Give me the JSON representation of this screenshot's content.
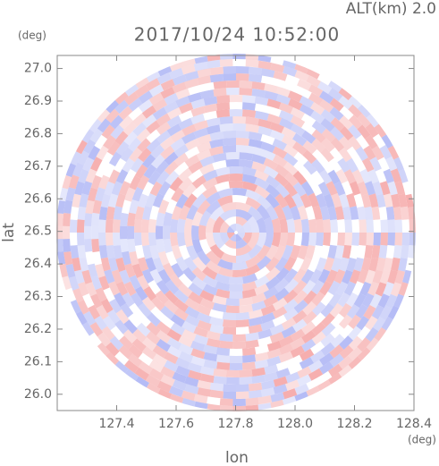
{
  "chart_data": {
    "type": "image",
    "title": "2017/10/24 10:52:00",
    "subtitle": "ALT(km) 2.0",
    "x_label": "lon",
    "y_label": "lat",
    "x_unit": "(deg)",
    "y_unit": "(deg)",
    "xlim": [
      127.2,
      128.4
    ],
    "xticks": [
      127.4,
      127.6,
      127.8,
      {
        "value": 128.0,
        "label": "128.0"
      },
      128.2,
      128.4
    ],
    "ylim": [
      25.95,
      27.04
    ],
    "yticks": [
      {
        "value": 26.0,
        "label": "26.0"
      },
      26.1,
      26.2,
      26.3,
      26.4,
      26.5,
      26.6,
      26.7,
      26.8,
      26.9,
      {
        "value": 27.0,
        "label": "27.0"
      }
    ]
  }
}
